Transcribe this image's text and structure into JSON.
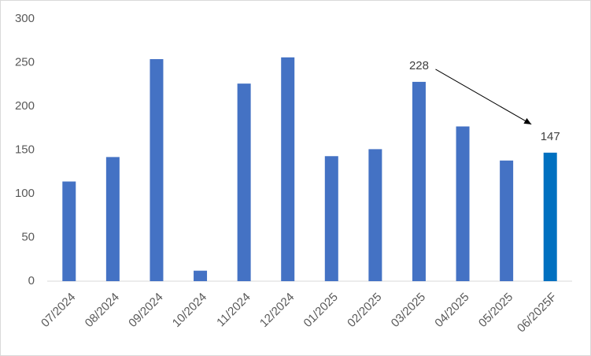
{
  "chart_data": {
    "type": "bar",
    "categories": [
      "07/2024",
      "08/2024",
      "09/2024",
      "10/2024",
      "11/2024",
      "12/2024",
      "01/2025",
      "02/2025",
      "03/2025",
      "04/2025",
      "05/2025",
      "06/2025F"
    ],
    "values": [
      114,
      142,
      254,
      12,
      226,
      256,
      143,
      151,
      228,
      177,
      138,
      147
    ],
    "value_labels": [
      null,
      null,
      null,
      null,
      null,
      null,
      null,
      null,
      "228",
      null,
      null,
      "147"
    ],
    "colors": [
      "#4472c4",
      "#4472c4",
      "#4472c4",
      "#4472c4",
      "#4472c4",
      "#4472c4",
      "#4472c4",
      "#4472c4",
      "#4472c4",
      "#4472c4",
      "#4472c4",
      "#0070c0"
    ],
    "ylim": [
      0,
      300
    ],
    "yticks": [
      0,
      50,
      100,
      150,
      200,
      250,
      300
    ],
    "grid": false
  }
}
